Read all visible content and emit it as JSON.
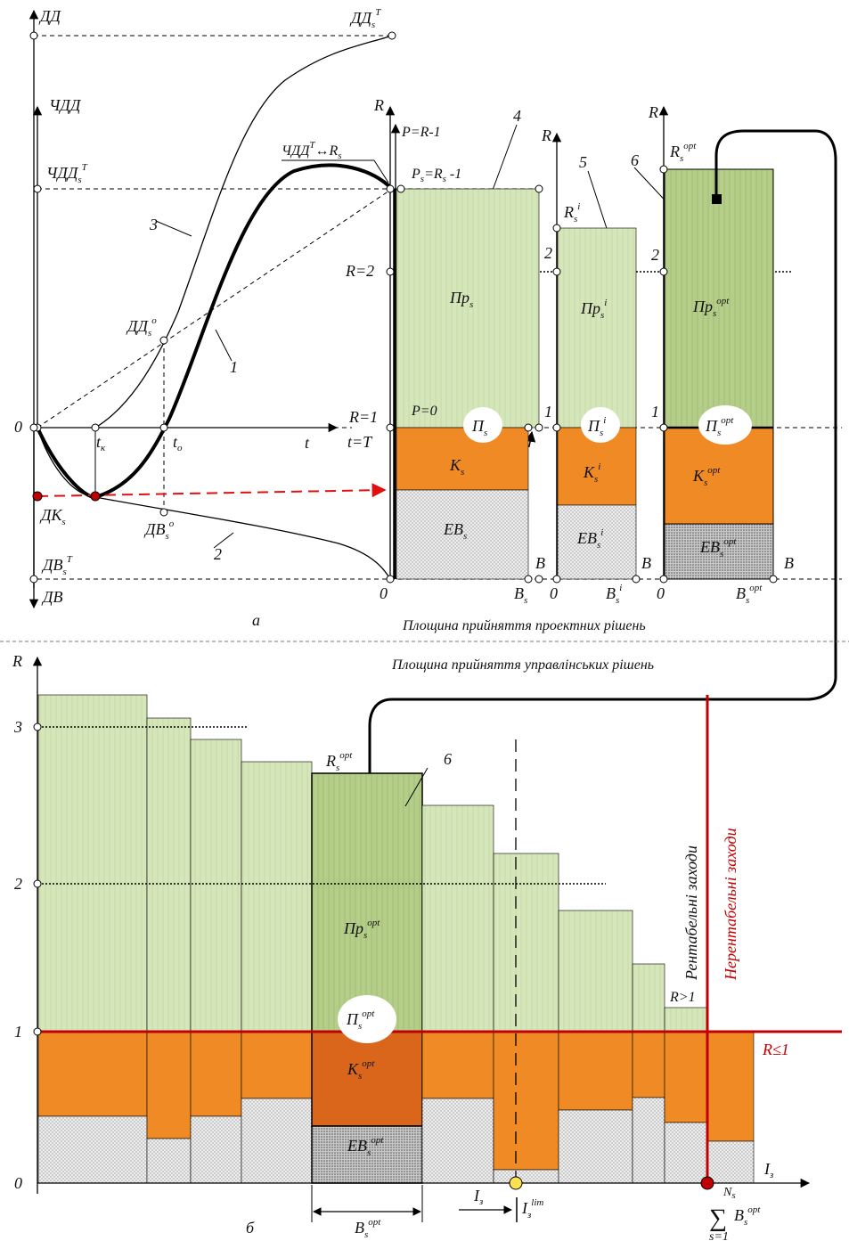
{
  "colors": {
    "light_green": "#d4e4b8",
    "mid_green": "#b2cb86",
    "orange": "#f08a24",
    "dark_orange": "#d9661a",
    "stipple": "#dcdcdc",
    "dark_stipple": "#bdbdbd",
    "red_line": "#c00000",
    "yellow_marker": "#ffe14d"
  },
  "top": {
    "axis": {
      "dd": "ДД",
      "chdd": "ЧДД",
      "dv": "ДВ",
      "t": "t",
      "zero": "0",
      "dd_T": "ДД",
      "dd_T_sub": "s",
      "dd_T_sup": "T",
      "chdd_T": "ЧДД",
      "chdd_T_sub": "s",
      "chdd_T_sup": "T",
      "dv_T": "ДВ",
      "dv_T_sub": "s",
      "dv_T_sup": "T",
      "dd_o": "ДД",
      "dd_o_sub": "s",
      "dd_o_sup": "o",
      "dv_o": "ДВ",
      "dv_o_sub": "s",
      "dv_o_sup": "o",
      "dk": "ДК",
      "dk_sub": "s",
      "t_k": "t",
      "t_k_sub": "к",
      "t_o": "t",
      "t_o_sub": "o",
      "t_eq_T": "t=T",
      "chdd_R_lead": "ЧДД",
      "chdd_R_sup": "T",
      "chdd_R_arrow": "↔R",
      "chdd_R_sub": "s"
    },
    "curve_labels": {
      "c1": "1",
      "c2": "2",
      "c3": "3"
    },
    "panel_s": {
      "R": "R",
      "P_eq": "P=R-1",
      "Ps_eq": "P",
      "Ps_eq_sub": "s",
      "Ps_eq_rest": "=R",
      "Ps_eq_sub2": "s",
      "Ps_eq_tail": " -1",
      "R2": "R=2",
      "R1": "R=1",
      "P0": "P=0",
      "num": "4",
      "Pr": "Пр",
      "Pr_sub": "s",
      "Pi": "П",
      "Pi_sub": "s",
      "K": "K",
      "K_sub": "s",
      "EB": "ЕВ",
      "EB_sub": "s",
      "B": "B",
      "Bs": "B",
      "Bs_sub": "s",
      "zero": "0"
    },
    "panel_i": {
      "R": "R",
      "Ri": "R",
      "Ri_sub": "s",
      "Ri_sup": "i",
      "two": "2",
      "one": "1",
      "num": "5",
      "Pr": "Пр",
      "Pr_sub": "s",
      "Pr_sup": "i",
      "Pi": "П",
      "Pi_sub": "s",
      "Pi_sup": "i",
      "K": "K",
      "K_sub": "s",
      "K_sup": "i",
      "EB": "ЕВ",
      "EB_sub": "s",
      "EB_sup": "i",
      "B": "B",
      "Bs": "B",
      "Bs_sub": "s",
      "Bs_sup": "i",
      "zero": "0"
    },
    "panel_opt": {
      "R": "R",
      "Ropt": "R",
      "Ropt_sub": "s",
      "Ropt_sup": "opt",
      "two": "2",
      "one": "1",
      "num": "6",
      "Pr": "Пр",
      "Pr_sub": "s",
      "Pr_sup": "opt",
      "Pi": "П",
      "Pi_sub": "s",
      "Pi_sup": "opt",
      "K": "K",
      "K_sub": "s",
      "K_sup": "opt",
      "EB": "ЕВ",
      "EB_sub": "s",
      "EB_sup": "opt",
      "B": "B",
      "Bs": "B",
      "Bs_sub": "s",
      "Bs_sup": "opt",
      "zero": "0"
    },
    "caption_a": "а",
    "plane_design": "Площина прийняття проектних рішень"
  },
  "bottom": {
    "plane_mgmt": "Площина прийняття управлінських рішень",
    "axis_R": "R",
    "tick_0": "0",
    "tick_1": "1",
    "tick_2": "2",
    "tick_3": "3",
    "axis_I": "I",
    "axis_I_sub": "з",
    "Ropt": "R",
    "Ropt_sub": "s",
    "Ropt_sup": "opt",
    "num": "6",
    "Pr": "Пр",
    "Pr_sub": "s",
    "Pr_sup": "opt",
    "Pi": "П",
    "Pi_sub": "s",
    "Pi_sup": "opt",
    "K": "K",
    "K_sub": "s",
    "K_sup": "opt",
    "EB": "ЕВ",
    "EB_sub": "s",
    "EB_sup": "opt",
    "Bopt": "B",
    "Bopt_sub": "s",
    "Bopt_sup": "opt",
    "I_step": "I",
    "I_step_sub": "з",
    "I_lim": "I",
    "I_lim_sub": "з",
    "I_lim_sup": "lim",
    "sum_N": "N",
    "sum_N_sub": "s",
    "sum_sigma": "∑",
    "sum_B": "B",
    "sum_B_sub": "s",
    "sum_B_sup": "opt",
    "sum_s1": "s=1",
    "r_gt_1": "R>1",
    "r_le_1": "R≤1",
    "profitable": "Рентабельні заходи",
    "unprofitable": "Нерентабельні заходи",
    "caption_b": "б"
  }
}
